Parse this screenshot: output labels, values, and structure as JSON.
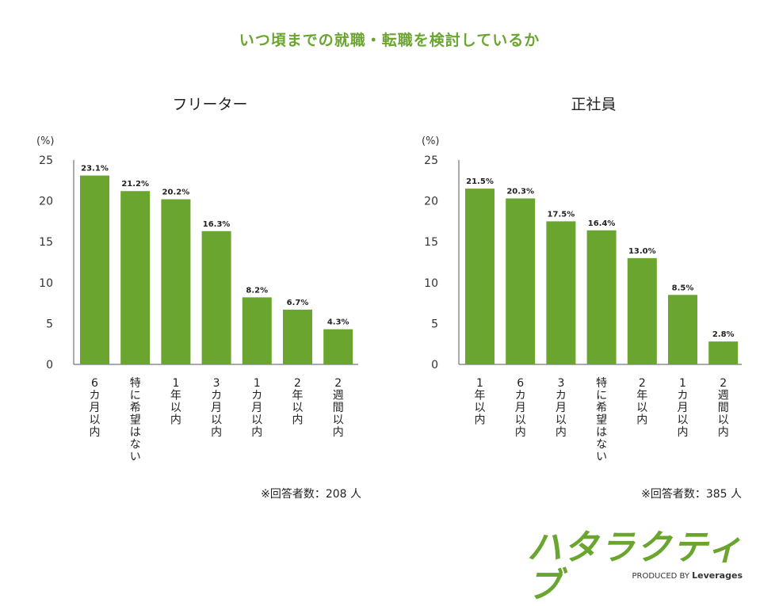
{
  "title": "いつ頃までの就職・転職を検討しているか",
  "colors": {
    "bar": "#6aa52f",
    "title": "#6aa52f",
    "axis": "#555555",
    "logo_green": "#6aa52f",
    "logo_orange": "#f39a1e"
  },
  "chart_data": [
    {
      "type": "bar",
      "title": "フリーター",
      "ylabel": "(%)",
      "ylim": [
        0,
        25
      ],
      "yticks": [
        0,
        5,
        10,
        15,
        20,
        25
      ],
      "categories": [
        "6カ月以内",
        "特に希望はない",
        "1年以内",
        "3カ月以内",
        "1カ月以内",
        "2年以内",
        "2週間以内"
      ],
      "values": [
        23.1,
        21.2,
        20.2,
        16.3,
        8.2,
        6.7,
        4.3
      ],
      "value_labels": [
        "23.1%",
        "21.2%",
        "20.2%",
        "16.3%",
        "8.2%",
        "6.7%",
        "4.3%"
      ],
      "note": "※回答者数：208 人"
    },
    {
      "type": "bar",
      "title": "正社員",
      "ylabel": "(%)",
      "ylim": [
        0,
        25
      ],
      "yticks": [
        0,
        5,
        10,
        15,
        20,
        25
      ],
      "categories": [
        "1年以内",
        "6カ月以内",
        "3カ月以内",
        "特に希望はない",
        "2年以内",
        "1カ月以内",
        "2週間以内"
      ],
      "values": [
        21.5,
        20.3,
        17.5,
        16.4,
        13.0,
        8.5,
        2.8
      ],
      "value_labels": [
        "21.5%",
        "20.3%",
        "17.5%",
        "16.4%",
        "13.0%",
        "8.5%",
        "2.8%"
      ],
      "note": "※回答者数：385 人"
    }
  ],
  "logo": {
    "text": "ハタラクティブ",
    "produced_by": "PRODUCED BY",
    "brand": "Leverages"
  }
}
